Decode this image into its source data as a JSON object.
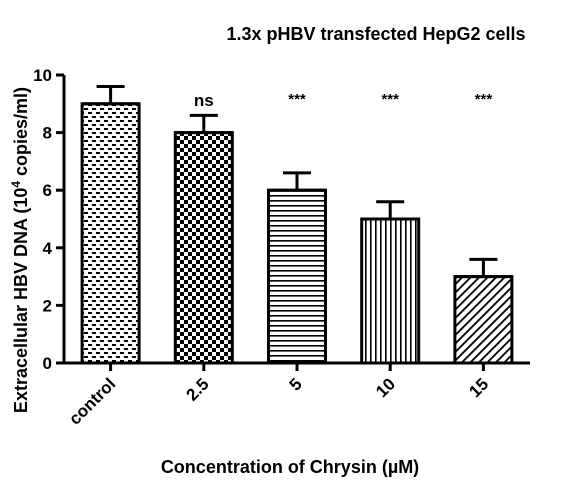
{
  "chart_data": {
    "type": "bar",
    "title": "1.3x pHBV transfected HepG2 cells",
    "xlabel": "Concentration of Chrysin (µM)",
    "ylabel_main": "Extracellular  HBV DNA (10",
    "ylabel_sup": "4",
    "ylabel_tail": " copies/ml)",
    "ylim": [
      0,
      10
    ],
    "yticks": [
      "0",
      "2",
      "4",
      "6",
      "8",
      "10"
    ],
    "categories": [
      "control",
      "2.5",
      "5",
      "10",
      "15"
    ],
    "values": [
      9.0,
      8.0,
      6.0,
      5.0,
      3.0
    ],
    "errors": [
      0.6,
      0.6,
      0.6,
      0.6,
      0.6
    ],
    "annotations": [
      "",
      "ns",
      "***",
      "***",
      "***"
    ],
    "patterns": [
      "brick",
      "checker",
      "horizontal",
      "vertical",
      "diagonal"
    ],
    "bar_fill": "#ffffff",
    "bar_stroke": "#000000"
  }
}
